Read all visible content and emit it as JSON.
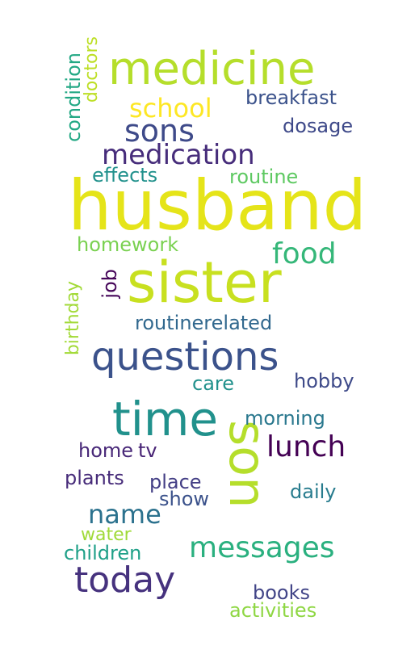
{
  "words": [
    {
      "text": "husband",
      "color": "#e5e419"
    },
    {
      "text": "sister",
      "color": "#c8e020"
    },
    {
      "text": "medicine",
      "color": "#b5de2b"
    },
    {
      "text": "questions",
      "color": "#3b528b"
    },
    {
      "text": "time",
      "color": "#21918c"
    },
    {
      "text": "son",
      "color": "#b5de2b"
    },
    {
      "text": "today",
      "color": "#46327e"
    },
    {
      "text": "messages",
      "color": "#2ab07f"
    },
    {
      "text": "sons",
      "color": "#3e4a89"
    },
    {
      "text": "school",
      "color": "#fde725"
    },
    {
      "text": "medication",
      "color": "#472d7b"
    },
    {
      "text": "food",
      "color": "#35b779"
    },
    {
      "text": "lunch",
      "color": "#440154"
    },
    {
      "text": "name",
      "color": "#2c728e"
    },
    {
      "text": "breakfast",
      "color": "#3b528b"
    },
    {
      "text": "dosage",
      "color": "#3e4989"
    },
    {
      "text": "effects",
      "color": "#21918c"
    },
    {
      "text": "routine",
      "color": "#5ec962"
    },
    {
      "text": "homework",
      "color": "#7ad151"
    },
    {
      "text": "job",
      "color": "#450559"
    },
    {
      "text": "routinerelated",
      "color": "#31688e"
    },
    {
      "text": "care",
      "color": "#21918c"
    },
    {
      "text": "hobby",
      "color": "#3e4a89"
    },
    {
      "text": "morning",
      "color": "#2a788e"
    },
    {
      "text": "home",
      "color": "#482878"
    },
    {
      "text": "tv",
      "color": "#482475"
    },
    {
      "text": "plants",
      "color": "#472c7a"
    },
    {
      "text": "place",
      "color": "#433e85"
    },
    {
      "text": "show",
      "color": "#3b528b"
    },
    {
      "text": "daily",
      "color": "#287c8e"
    },
    {
      "text": "water",
      "color": "#a0da39"
    },
    {
      "text": "children",
      "color": "#1fa088"
    },
    {
      "text": "books",
      "color": "#414487"
    },
    {
      "text": "activities",
      "color": "#8fd744"
    },
    {
      "text": "condition",
      "color": "#22a884"
    },
    {
      "text": "doctors",
      "color": "#bddf26"
    },
    {
      "text": "birthday",
      "color": "#a2da37"
    }
  ]
}
